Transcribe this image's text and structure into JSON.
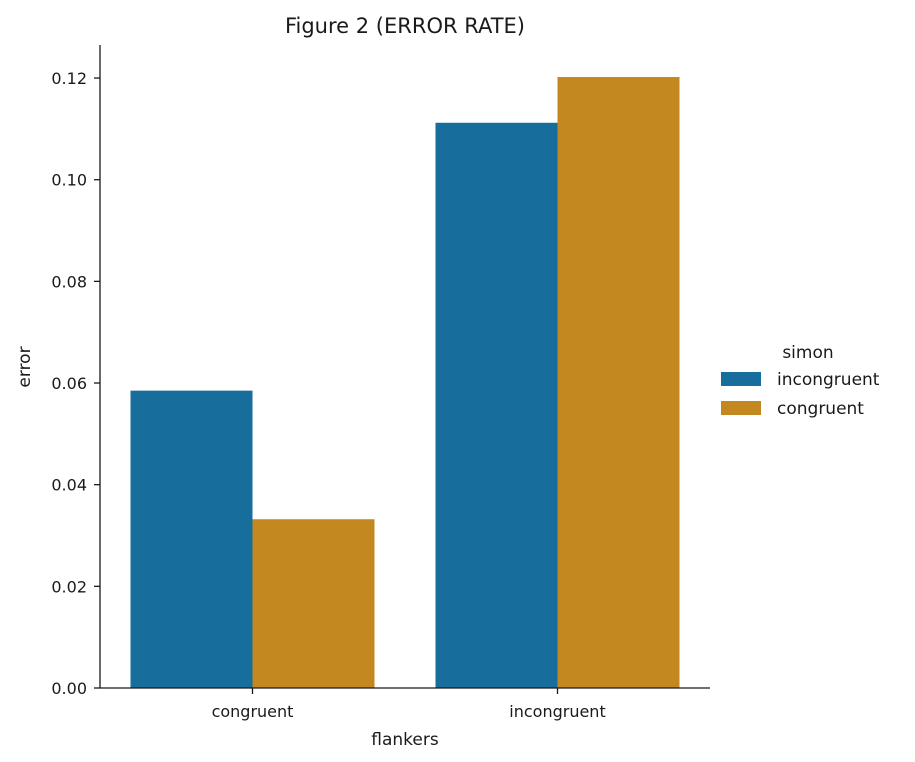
{
  "chart_data": {
    "type": "bar",
    "title": "Figure 2 (ERROR RATE)",
    "xlabel": "flankers",
    "ylabel": "error",
    "categories": [
      "congruent",
      "incongruent"
    ],
    "series": [
      {
        "name": "incongruent",
        "color": "#176d9c",
        "values": [
          0.0585,
          0.1112
        ]
      },
      {
        "name": "congruent",
        "color": "#c38820",
        "values": [
          0.0332,
          0.1202
        ]
      }
    ],
    "ylim": [
      0,
      0.1265
    ],
    "yticks": [
      0.0,
      0.02,
      0.04,
      0.06,
      0.08,
      0.1,
      0.12
    ],
    "ytick_labels": [
      "0.00",
      "0.02",
      "0.04",
      "0.06",
      "0.08",
      "0.10",
      "0.12"
    ],
    "legend": {
      "title": "simon",
      "placement": "right"
    },
    "grid": false
  }
}
